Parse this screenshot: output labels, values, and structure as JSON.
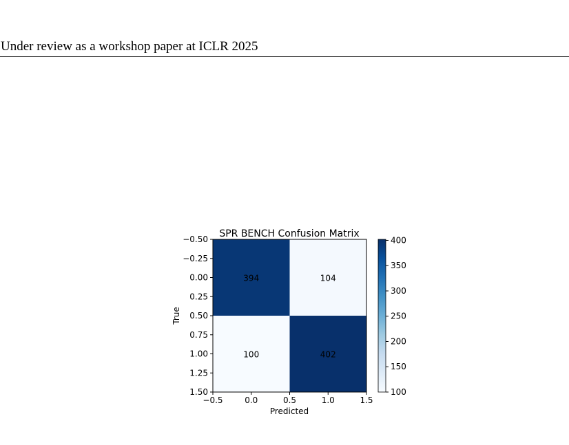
{
  "header": {
    "text": "Under review as a workshop paper at ICLR 2025"
  },
  "chart_data": {
    "type": "heatmap",
    "title": "SPR BENCH Confusion Matrix",
    "xlabel": "Predicted",
    "ylabel": "True",
    "matrix": [
      [
        394,
        104
      ],
      [
        100,
        402
      ]
    ],
    "xlim": [
      -0.5,
      1.5
    ],
    "ylim": [
      -0.5,
      1.5
    ],
    "xticks": [
      "−0.5",
      "0.0",
      "0.5",
      "1.0",
      "1.5"
    ],
    "yticks": [
      "−0.50",
      "−0.25",
      "0.00",
      "0.25",
      "0.50",
      "0.75",
      "1.00",
      "1.25",
      "1.50"
    ],
    "colorbar": {
      "min": 100,
      "max": 402,
      "ticks": [
        "100",
        "150",
        "200",
        "250",
        "300",
        "350",
        "400"
      ],
      "colormap": "Blues"
    },
    "colors": {
      "low": "#f7fbff",
      "high": "#08306b"
    }
  }
}
